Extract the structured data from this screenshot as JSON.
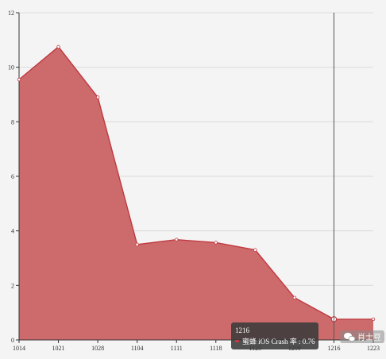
{
  "chart_data": {
    "type": "area",
    "title": "",
    "xlabel": "",
    "ylabel": "",
    "categories": [
      "1014",
      "1021",
      "1028",
      "1104",
      "1111",
      "1118",
      "1125",
      "1209",
      "1216",
      "1223"
    ],
    "series": [
      {
        "name": "蜜蜂 iOS Crash 率",
        "values": [
          9.55,
          10.75,
          8.9,
          3.5,
          3.68,
          3.57,
          3.3,
          1.55,
          0.76,
          0.76
        ],
        "color": "#c0393f"
      }
    ],
    "ylim": [
      0,
      12
    ],
    "yticks": [
      0,
      2,
      4,
      6,
      8,
      10,
      12
    ],
    "grid": true,
    "legend": "none",
    "area_fill": "#cd6b6c",
    "line_color": "#c0393f",
    "tooltip": {
      "category": "1216",
      "series_label": "蜜蜂 iOS Crash 率",
      "value": "0.76",
      "text": "蜜蜂 iOS Crash 率 : 0.76"
    }
  },
  "watermark": {
    "text": "肖士豆",
    "icon": "wechat-icon"
  }
}
